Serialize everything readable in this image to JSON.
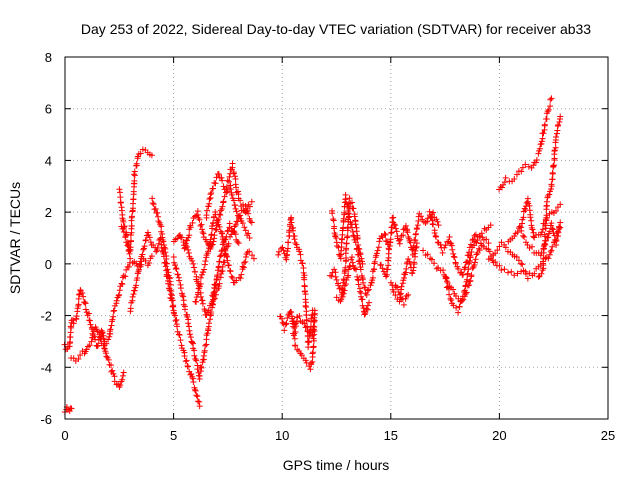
{
  "chart_data": {
    "type": "scatter",
    "title": "Day 253 of 2022, Sidereal Day-to-day VTEC variation (SDTVAR) for receiver ab33",
    "xlabel": "GPS time / hours",
    "ylabel": "SDTVAR / TECUs",
    "xlim": [
      0,
      25
    ],
    "ylim": [
      -6,
      8
    ],
    "xticks": [
      "0",
      "5",
      "10",
      "15",
      "20",
      "25"
    ],
    "yticks": [
      "-6",
      "-4",
      "-2",
      "0",
      "2",
      "4",
      "6",
      "8"
    ],
    "grid": true,
    "marker": "plus",
    "color": "#ff0000",
    "series": [
      {
        "name": "SDTVAR",
        "tracks": [
          {
            "x": [
              0.0,
              0.1,
              0.2,
              0.3,
              0.4
            ],
            "y": [
              -3.2,
              -3.3,
              -3.2,
              -2.2,
              -2.3
            ]
          },
          {
            "x": [
              0.0,
              0.1,
              0.2,
              0.3
            ],
            "y": [
              -5.7,
              -5.5,
              -5.7,
              -5.6
            ]
          },
          {
            "x": [
              0.3,
              0.5,
              0.7,
              0.9,
              1.0,
              1.2,
              1.4,
              1.6,
              1.8,
              2.0,
              2.2,
              2.4,
              2.6,
              2.8,
              3.0,
              3.2,
              3.4,
              3.6,
              3.8,
              4.0
            ],
            "y": [
              -3.6,
              -3.7,
              -3.5,
              -3.4,
              -3.3,
              -3.0,
              -2.4,
              -2.8,
              -3.2,
              -3.0,
              -2.0,
              -1.5,
              -0.8,
              -0.3,
              0.0,
              0.1,
              -0.2,
              0.1,
              0.0,
              0.3
            ]
          },
          {
            "x": [
              0.5,
              0.7,
              0.9,
              1.1,
              1.3,
              1.5,
              1.7,
              1.9,
              2.1,
              2.3,
              2.5,
              2.7
            ],
            "y": [
              -2.2,
              -1.0,
              -1.5,
              -2.0,
              -2.8,
              -3.2,
              -2.5,
              -3.6,
              -4.0,
              -4.5,
              -4.8,
              -4.2
            ]
          },
          {
            "x": [
              2.6,
              2.8,
              3.0,
              3.2,
              3.4,
              3.6,
              3.8,
              4.0
            ],
            "y": [
              1.5,
              1.0,
              0.5,
              3.5,
              4.3,
              4.4,
              4.3,
              4.2
            ]
          },
          {
            "x": [
              2.5,
              2.6,
              2.7,
              2.8,
              2.9,
              3.0
            ],
            "y": [
              2.8,
              2.2,
              1.6,
              1.3,
              0.8,
              0.2
            ]
          },
          {
            "x": [
              3.0,
              3.2,
              3.4,
              3.6,
              3.8,
              4.0,
              4.2,
              4.4,
              4.6,
              4.8,
              5.0
            ],
            "y": [
              -1.8,
              -1.0,
              -0.2,
              0.5,
              1.2,
              0.8,
              0.5,
              1.0,
              0.0,
              -1.0,
              -1.8
            ]
          },
          {
            "x": [
              4.0,
              4.2,
              4.4,
              4.6,
              4.8,
              5.0,
              5.2,
              5.4,
              5.6,
              5.8,
              6.0,
              6.2
            ],
            "y": [
              2.5,
              2.0,
              1.5,
              0.5,
              -0.5,
              -1.8,
              -2.6,
              -3.2,
              -3.8,
              -4.3,
              -4.8,
              -5.5
            ]
          },
          {
            "x": [
              5.0,
              5.2,
              5.4,
              5.6,
              5.8,
              6.0,
              6.2,
              6.4,
              6.6,
              6.8,
              7.0
            ],
            "y": [
              0.2,
              -0.5,
              -1.2,
              -2.0,
              -2.8,
              -3.6,
              -4.4,
              -3.5,
              -2.5,
              -1.5,
              -0.5
            ]
          },
          {
            "x": [
              5.0,
              5.3,
              5.6,
              5.9,
              6.2,
              6.5,
              6.8,
              7.1,
              7.4,
              7.7,
              8.0,
              8.3,
              8.6
            ],
            "y": [
              0.8,
              1.2,
              0.6,
              0.0,
              -1.0,
              -2.0,
              -1.5,
              -0.8,
              0.5,
              1.2,
              1.8,
              2.2,
              1.6
            ]
          },
          {
            "x": [
              5.5,
              5.8,
              6.1,
              6.4,
              6.7,
              7.0,
              7.3,
              7.6,
              7.9,
              8.2,
              8.5
            ],
            "y": [
              0.5,
              1.5,
              2.0,
              1.0,
              0.5,
              1.5,
              2.5,
              3.0,
              2.0,
              1.5,
              1.0
            ]
          },
          {
            "x": [
              6.0,
              6.3,
              6.6,
              6.9,
              7.2,
              7.5,
              7.8,
              8.1,
              8.4,
              8.7
            ],
            "y": [
              -1.5,
              -0.5,
              0.5,
              2.0,
              1.2,
              0.0,
              -0.8,
              -0.5,
              0.5,
              0.2
            ]
          },
          {
            "x": [
              6.5,
              6.8,
              7.1,
              7.4,
              7.7,
              8.0,
              8.3,
              8.6
            ],
            "y": [
              1.8,
              3.0,
              3.5,
              2.8,
              3.8,
              2.5,
              2.0,
              2.4
            ]
          },
          {
            "x": [
              6.8,
              7.0,
              7.2,
              7.4,
              7.6,
              7.8,
              8.0
            ],
            "y": [
              -1.2,
              -0.5,
              0.5,
              1.0,
              1.5,
              1.2,
              0.8
            ]
          },
          {
            "x": [
              9.8,
              10.0,
              10.2,
              10.4,
              10.6,
              10.8,
              11.0,
              11.2,
              11.4
            ],
            "y": [
              0.3,
              0.6,
              0.2,
              1.8,
              0.8,
              0.4,
              -0.3,
              -3.2,
              -1.8
            ]
          },
          {
            "x": [
              9.9,
              10.1,
              10.4,
              10.6,
              11.3,
              11.4,
              11.5
            ],
            "y": [
              -2.0,
              -2.5,
              -1.8,
              -3.2,
              -4.0,
              -3.6,
              -2.2
            ]
          },
          {
            "x": [
              10.5,
              10.6,
              10.7,
              11.4,
              11.5
            ],
            "y": [
              -2.2,
              -2.6,
              -2.0,
              -2.8,
              -1.8
            ]
          },
          {
            "x": [
              12.3,
              12.5,
              12.7,
              12.9,
              13.1,
              13.3,
              13.5,
              13.7,
              13.9,
              14.1,
              14.3,
              14.5,
              14.7,
              14.9
            ],
            "y": [
              2.0,
              0.8,
              0.2,
              2.6,
              1.8,
              1.0,
              0.4,
              -0.6,
              -1.2,
              -0.8,
              0.2,
              0.9,
              1.2,
              0.6
            ]
          },
          {
            "x": [
              12.2,
              12.4,
              12.6,
              12.8,
              13.0,
              13.2,
              13.4,
              13.6,
              13.8,
              14.0
            ],
            "y": [
              -0.5,
              -0.2,
              -0.8,
              -1.2,
              -0.5,
              0.2,
              -0.3,
              -1.0,
              -2.0,
              -1.5
            ]
          },
          {
            "x": [
              12.5,
              12.7,
              12.9,
              13.1,
              13.3,
              13.5,
              13.7
            ],
            "y": [
              -1.3,
              -1.5,
              -0.2,
              2.5,
              2.1,
              0.8,
              0.0
            ]
          },
          {
            "x": [
              14.5,
              14.8,
              15.1,
              15.4,
              15.7,
              16.0,
              16.3,
              16.6,
              16.9,
              17.2
            ],
            "y": [
              0.0,
              -0.5,
              1.8,
              0.8,
              1.5,
              0.4,
              1.9,
              1.5,
              2.0,
              1.5
            ]
          },
          {
            "x": [
              15.0,
              15.2,
              15.4,
              15.6,
              15.8,
              16.0,
              16.2
            ],
            "y": [
              -0.8,
              -1.2,
              -1.4,
              -0.6,
              0.2,
              -0.4,
              0.8
            ]
          },
          {
            "x": [
              15.2,
              15.4,
              15.6,
              15.8
            ],
            "y": [
              -0.8,
              -1.2,
              -1.5,
              -1.2
            ]
          },
          {
            "x": [
              16.5,
              16.8,
              17.1,
              17.4,
              17.7,
              18.0,
              18.3,
              18.6,
              18.9,
              19.2,
              19.5,
              19.8,
              20.1,
              20.4,
              20.7,
              21.0
            ],
            "y": [
              0.5,
              0.2,
              -0.1,
              -0.3,
              -0.8,
              -1.2,
              -1.5,
              -0.8,
              0.2,
              0.8,
              0.5,
              0.0,
              -0.2,
              -0.3,
              -0.4,
              -0.3
            ]
          },
          {
            "x": [
              16.8,
              17.1,
              17.4,
              17.7,
              18.0,
              18.3,
              18.6,
              18.9,
              19.2,
              19.5
            ],
            "y": [
              2.0,
              1.0,
              0.5,
              1.0,
              0.0,
              -0.5,
              0.5,
              1.2,
              1.0,
              0.8
            ]
          },
          {
            "x": [
              17.5,
              17.8,
              18.1,
              18.4,
              18.7,
              19.0,
              19.3,
              19.6
            ],
            "y": [
              -0.5,
              -1.5,
              -1.8,
              -1.0,
              0.5,
              1.0,
              1.3,
              1.5
            ]
          },
          {
            "x": [
              19.5,
              19.8,
              20.1,
              20.4,
              20.7,
              21.0,
              21.3,
              21.6,
              21.9,
              22.2,
              22.5,
              22.8
            ],
            "y": [
              0.2,
              0.5,
              0.8,
              0.5,
              0.3,
              0.0,
              -0.5,
              -0.3,
              0.0,
              0.2,
              0.8,
              1.4
            ]
          },
          {
            "x": [
              20.0,
              20.3,
              20.6,
              20.9,
              21.2,
              21.5,
              21.8,
              22.0,
              22.2,
              22.4
            ],
            "y": [
              2.8,
              3.3,
              3.2,
              3.5,
              3.8,
              3.7,
              4.2,
              5.0,
              5.8,
              6.4
            ]
          },
          {
            "x": [
              20.4,
              20.7,
              21.0,
              21.3,
              21.6,
              21.9,
              22.2,
              22.5,
              22.8
            ],
            "y": [
              0.8,
              1.0,
              1.5,
              2.5,
              1.0,
              1.2,
              1.8,
              2.0,
              2.3
            ]
          },
          {
            "x": [
              21.0,
              21.3,
              21.6,
              21.9,
              22.2,
              22.4,
              22.6,
              22.8
            ],
            "y": [
              1.2,
              0.8,
              0.5,
              0.3,
              1.0,
              1.5,
              0.8,
              1.6
            ]
          },
          {
            "x": [
              21.8,
              22.0,
              22.2,
              22.4,
              22.6,
              22.8
            ],
            "y": [
              -0.5,
              -0.2,
              2.5,
              3.0,
              4.8,
              5.7
            ]
          }
        ]
      }
    ]
  }
}
